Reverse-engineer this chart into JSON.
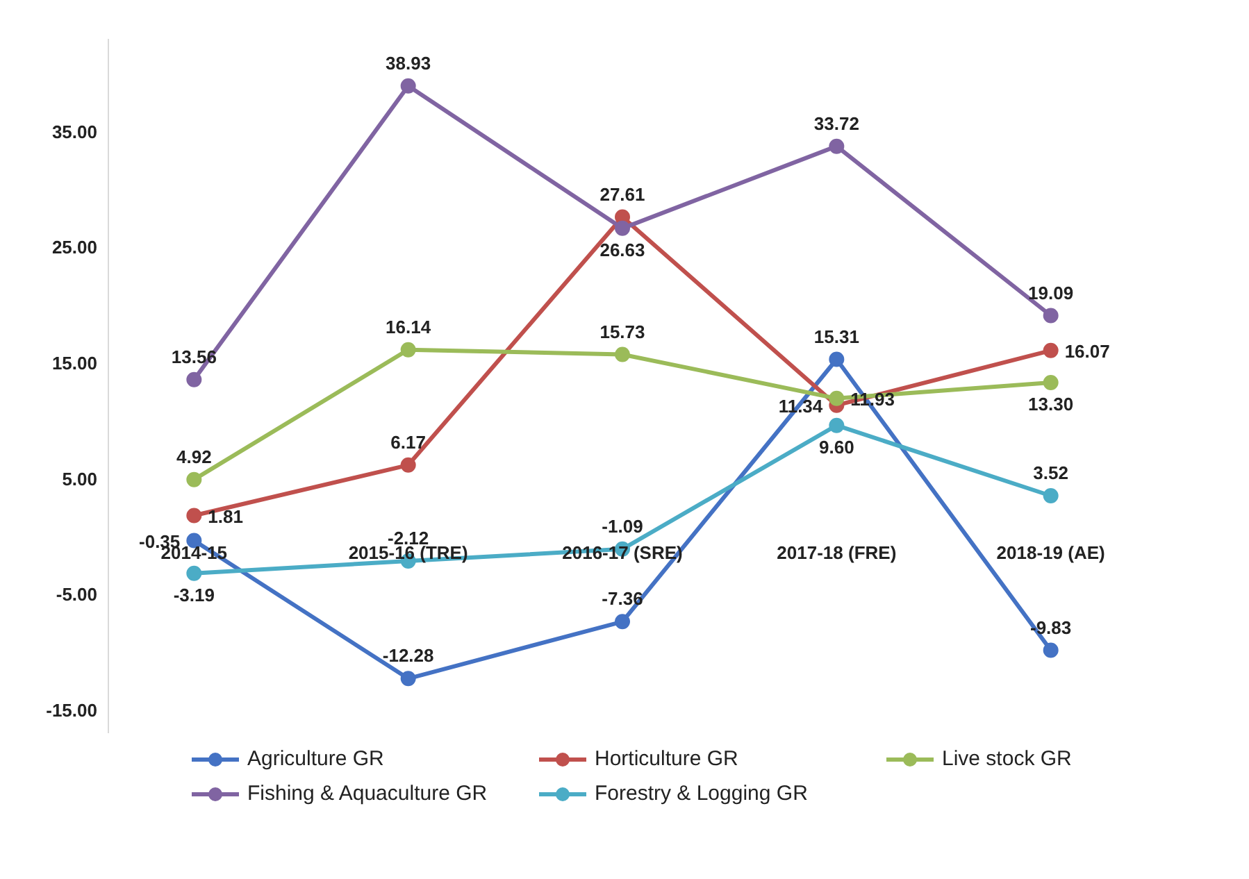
{
  "chart_data": {
    "type": "line",
    "categories": [
      "2014-15",
      "2015-16 (TRE)",
      "2016-17 (SRE)",
      "2017-18 (FRE)",
      "2018-19 (AE)"
    ],
    "series": [
      {
        "name": "Agriculture GR",
        "color": "#4472c4",
        "values": [
          -0.35,
          -12.28,
          -7.36,
          15.31,
          -9.83
        ],
        "value_labels": [
          "-0.35",
          "-12.28",
          "-7.36",
          "15.31",
          "-9.83"
        ]
      },
      {
        "name": "Horticulture GR",
        "color": "#c0504d",
        "values": [
          1.81,
          6.17,
          27.61,
          11.34,
          16.07
        ],
        "value_labels": [
          "1.81",
          "6.17",
          "27.61",
          "11.34",
          "16.07"
        ]
      },
      {
        "name": "Live stock GR",
        "color": "#9bbb59",
        "values": [
          4.92,
          16.14,
          15.73,
          11.93,
          13.3
        ],
        "value_labels": [
          "4.92",
          "16.14",
          "15.73",
          "11.93",
          "13.30"
        ]
      },
      {
        "name": "Fishing & Aquaculture GR",
        "color": "#8064a2",
        "values": [
          13.56,
          38.93,
          26.63,
          33.72,
          19.09
        ],
        "value_labels": [
          "13.56",
          "38.93",
          "26.63",
          "33.72",
          "19.09"
        ]
      },
      {
        "name": "Forestry & Logging GR",
        "color": "#4bacc6",
        "values": [
          -3.19,
          -2.12,
          -1.09,
          9.6,
          3.52
        ],
        "value_labels": [
          "-3.19",
          "-2.12",
          "-1.09",
          "9.60",
          "3.52"
        ]
      }
    ],
    "ylim": [
      -17,
      43
    ],
    "yticks": [
      {
        "value": -15,
        "label": "-15.00"
      },
      {
        "value": -5,
        "label": "-5.00"
      },
      {
        "value": 5,
        "label": "5.00"
      },
      {
        "value": 15,
        "label": "15.00"
      },
      {
        "value": 25,
        "label": "25.00"
      },
      {
        "value": 35,
        "label": "35.00"
      }
    ],
    "grid": false,
    "legend": "bottom",
    "marker": "circle",
    "line_style": "solid"
  }
}
